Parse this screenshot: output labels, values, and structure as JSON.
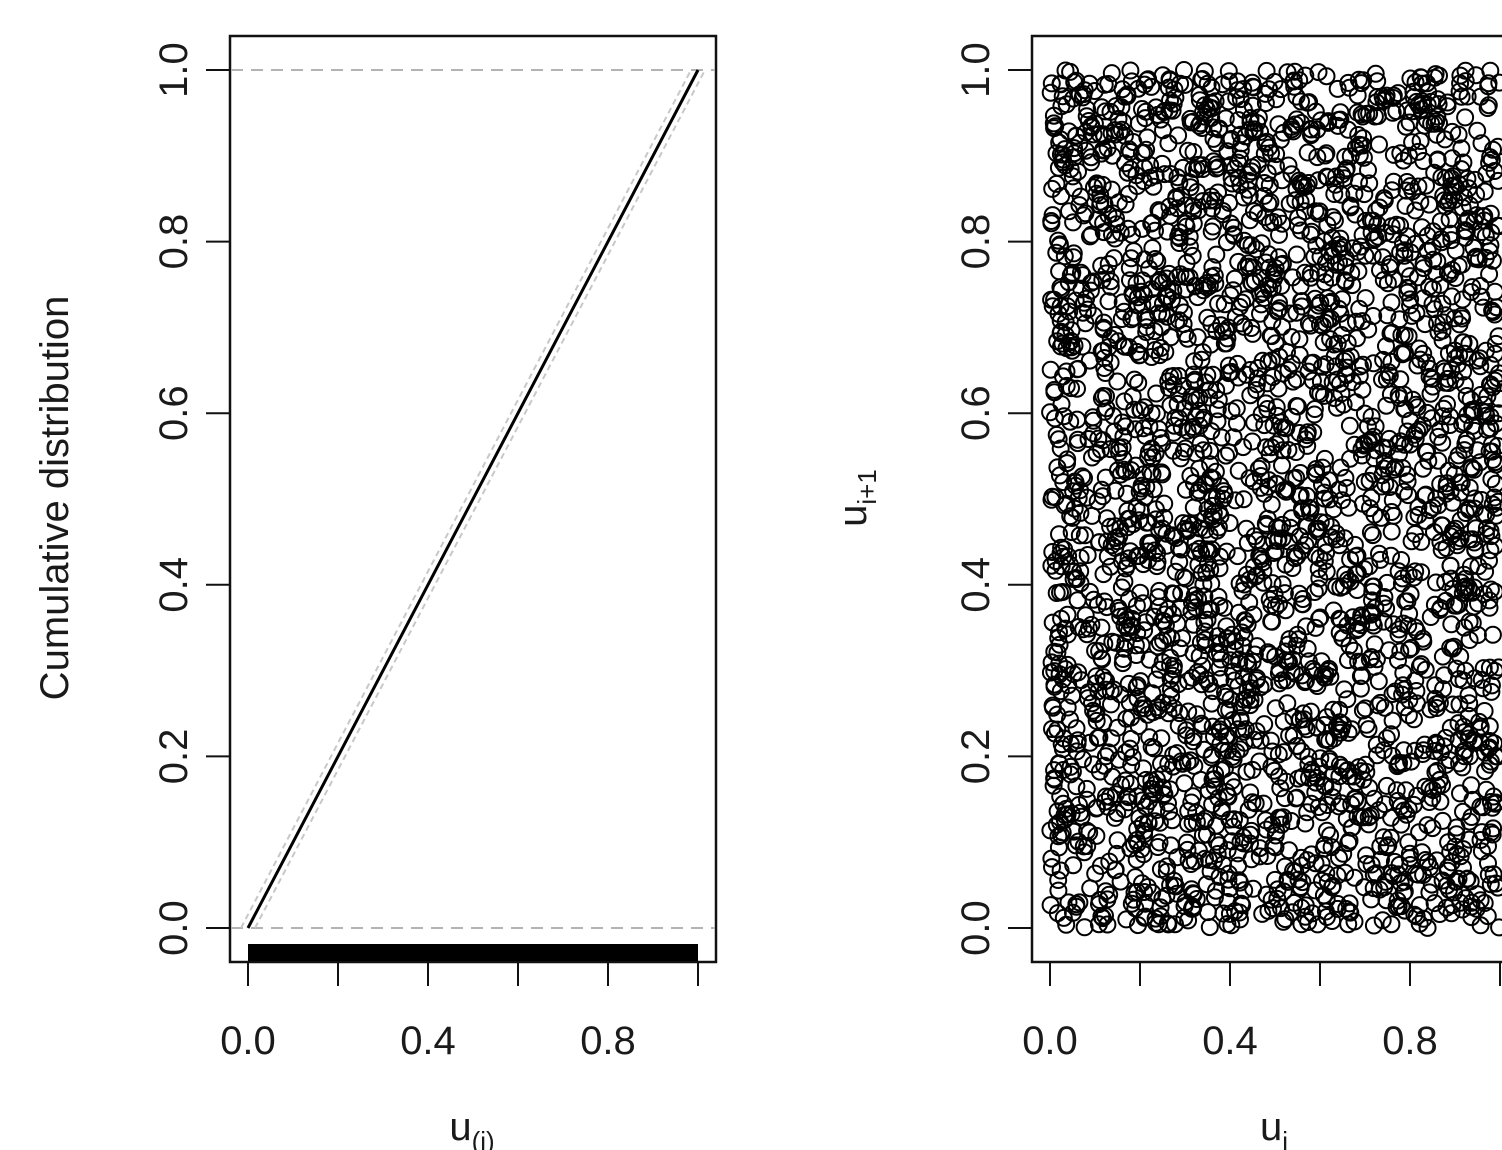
{
  "chart_data": [
    {
      "type": "line",
      "panel": "left",
      "xlabel": "u",
      "xlabel_subscript": "(i)",
      "ylabel": "Cumulative distribution",
      "xlim": [
        0,
        1
      ],
      "ylim": [
        0,
        1
      ],
      "x_ticks": [
        "0.0",
        "0.4",
        "0.8"
      ],
      "x_tick_values": [
        0.0,
        0.2,
        0.4,
        0.6,
        0.8,
        1.0
      ],
      "x_labeled_ticks": [
        0.0,
        0.4,
        0.8
      ],
      "y_ticks": [
        "0.0",
        "0.2",
        "0.4",
        "0.6",
        "0.8",
        "1.0"
      ],
      "y_tick_values": [
        0.0,
        0.2,
        0.4,
        0.6,
        0.8,
        1.0
      ],
      "reference_lines": [
        0.0,
        1.0
      ],
      "series": [
        {
          "x": [
            0.0,
            1.0
          ],
          "y": [
            0.0,
            1.0
          ]
        }
      ],
      "rug": "dense rug along x from 0.0 to 1.0",
      "grid": false
    },
    {
      "type": "scatter",
      "panel": "right",
      "xlabel": "u",
      "xlabel_subscript": "i",
      "ylabel": "u",
      "ylabel_subscript": "i+1",
      "xlim": [
        0,
        1
      ],
      "ylim": [
        0,
        1
      ],
      "x_ticks": [
        "0.0",
        "0.4",
        "0.8"
      ],
      "x_tick_values": [
        0.0,
        0.2,
        0.4,
        0.6,
        0.8,
        1.0
      ],
      "x_labeled_ticks": [
        0.0,
        0.4,
        0.8
      ],
      "y_ticks": [
        "0.0",
        "0.2",
        "0.4",
        "0.6",
        "0.8",
        "1.0"
      ],
      "y_tick_values": [
        0.0,
        0.2,
        0.4,
        0.6,
        0.8,
        1.0
      ],
      "point_count_estimate": 3000,
      "distribution": "uniform over [0,1] x [0,1]",
      "marker": "open circle",
      "grid": false
    }
  ]
}
